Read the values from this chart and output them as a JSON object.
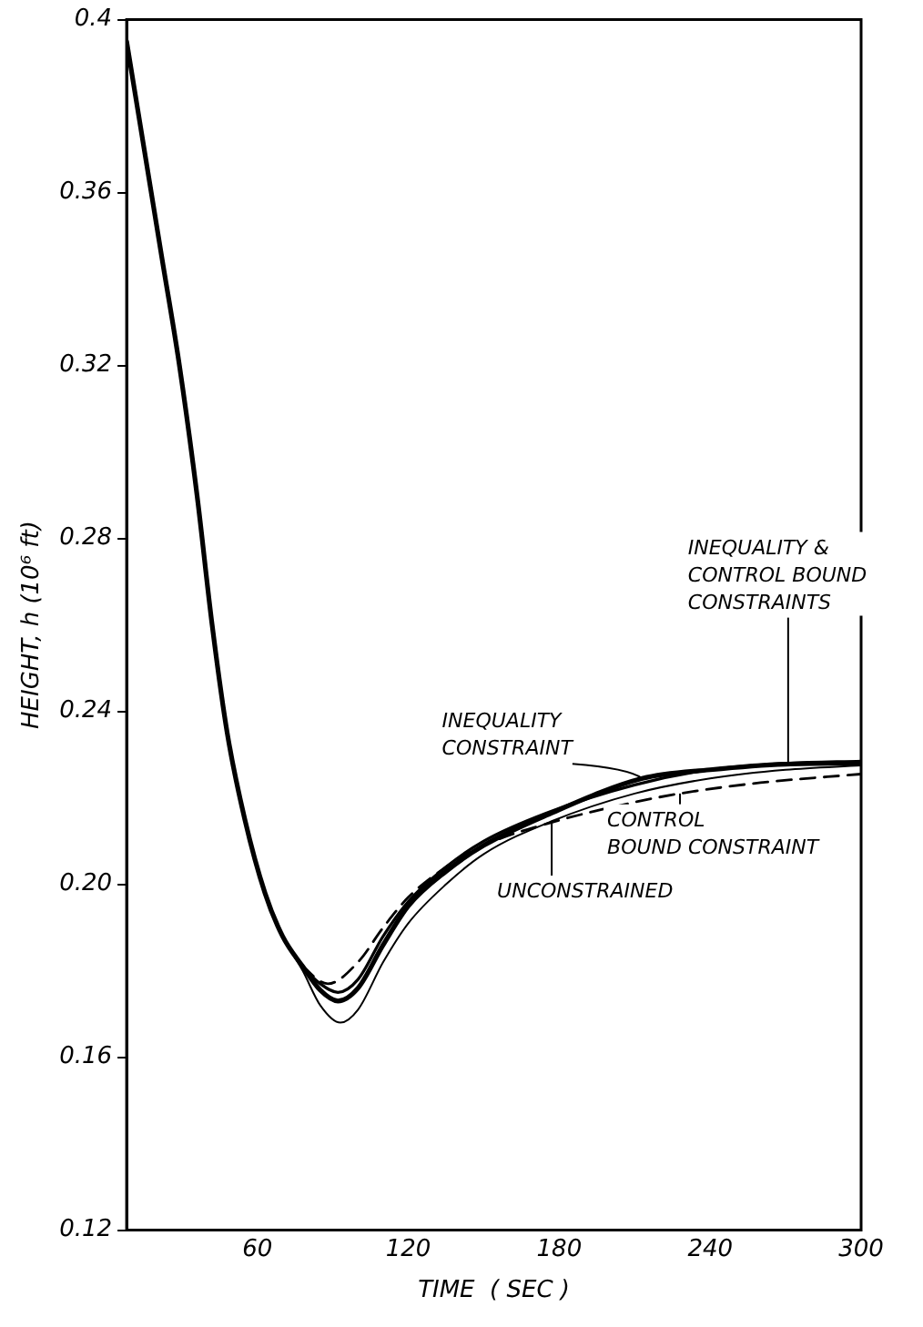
{
  "chart_data": {
    "type": "line",
    "xlabel": "TIME  ( SEC )",
    "ylabel": "HEIGHT, h (10⁶ ft)",
    "xlim": [
      8,
      300
    ],
    "xticks": [
      60,
      120,
      180,
      240,
      300
    ],
    "ylim": [
      0.12,
      0.4
    ],
    "yticks": [
      {
        "value": 0.12,
        "label": "0.12"
      },
      {
        "value": 0.16,
        "label": "0.16"
      },
      {
        "value": 0.2,
        "label": "0.20"
      },
      {
        "value": 0.24,
        "label": "0.24"
      },
      {
        "value": 0.28,
        "label": "0.28"
      },
      {
        "value": 0.32,
        "label": "0.32"
      },
      {
        "value": 0.36,
        "label": "0.36"
      },
      {
        "value": 0.4,
        "label": "0.4"
      }
    ],
    "grid": false,
    "legend": false,
    "marker": "none",
    "series": [
      {
        "color": "#000000",
        "line_style": "solid",
        "x": [
          8,
          15,
          22,
          29,
          36,
          42,
          48,
          55,
          63,
          70,
          78,
          85,
          93,
          100,
          110,
          120,
          135,
          150,
          177,
          210,
          240,
          270,
          300
        ],
        "values": [
          0.395,
          0.37,
          0.345,
          0.32,
          0.29,
          0.26,
          0.235,
          0.215,
          0.198,
          0.188,
          0.18,
          0.172,
          0.168,
          0.171,
          0.182,
          0.191,
          0.2,
          0.207,
          0.2146,
          0.221,
          0.2245,
          0.2265,
          0.2275
        ]
      },
      {
        "color": "#000000",
        "line_style": "solid",
        "x": [
          8,
          15,
          22,
          29,
          36,
          42,
          48,
          55,
          63,
          70,
          78,
          85,
          92,
          100,
          110,
          120,
          135,
          150,
          175,
          213,
          240,
          270,
          300
        ],
        "values": [
          0.395,
          0.37,
          0.345,
          0.32,
          0.29,
          0.26,
          0.235,
          0.215,
          0.198,
          0.188,
          0.181,
          0.1755,
          0.173,
          0.176,
          0.186,
          0.195,
          0.203,
          0.209,
          0.216,
          0.2245,
          0.2265,
          0.2278,
          0.228
        ]
      },
      {
        "color": "#000000",
        "line_style": "solid",
        "x": [
          8,
          15,
          22,
          29,
          36,
          42,
          48,
          55,
          63,
          70,
          78,
          85,
          92,
          100,
          110,
          120,
          135,
          150,
          175,
          210,
          240,
          271,
          300
        ],
        "values": [
          0.395,
          0.37,
          0.345,
          0.32,
          0.29,
          0.26,
          0.235,
          0.215,
          0.198,
          0.188,
          0.181,
          0.177,
          0.175,
          0.178,
          0.188,
          0.196,
          0.204,
          0.21,
          0.2165,
          0.223,
          0.2265,
          0.228,
          0.2285
        ]
      },
      {
        "color": "#000000",
        "line_style": "dashed",
        "x": [
          8,
          15,
          22,
          29,
          36,
          42,
          48,
          55,
          63,
          70,
          80,
          88,
          100,
          110,
          120,
          135,
          150,
          175,
          210,
          228,
          260,
          300
        ],
        "values": [
          0.395,
          0.37,
          0.345,
          0.32,
          0.29,
          0.26,
          0.235,
          0.215,
          0.198,
          0.188,
          0.18,
          0.177,
          0.182,
          0.19,
          0.197,
          0.204,
          0.209,
          0.214,
          0.219,
          0.221,
          0.2235,
          0.2255
        ]
      }
    ],
    "annotations": [
      {
        "text": "INEQUALITY &\nCONTROL BOUND\nCONSTRAINTS",
        "x": 271,
        "y": 0.228
      },
      {
        "text": "INEQUALITY\nCONSTRAINT",
        "x": 213,
        "y": 0.2245
      },
      {
        "text": "CONTROL\nBOUND CONSTRAINT",
        "x": 228,
        "y": 0.221
      },
      {
        "text": "UNCONSTRAINED",
        "x": 177,
        "y": 0.2146
      }
    ]
  }
}
